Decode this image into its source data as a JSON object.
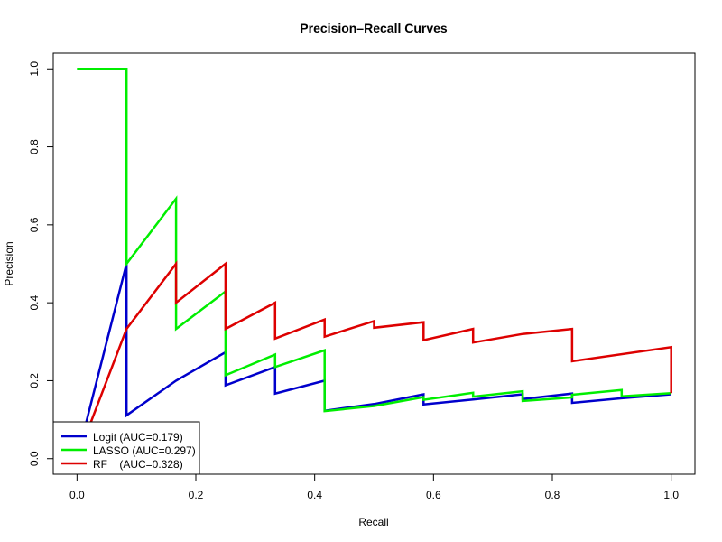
{
  "chart_data": {
    "type": "line",
    "title": "Precision–Recall Curves",
    "xlabel": "Recall",
    "ylabel": "Precision",
    "xlim": [
      0,
      1
    ],
    "ylim": [
      0,
      1
    ],
    "xticks": [
      "0.0",
      "0.2",
      "0.4",
      "0.6",
      "0.8",
      "1.0"
    ],
    "yticks": [
      "0.0",
      "0.2",
      "0.4",
      "0.6",
      "0.8",
      "1.0"
    ],
    "grid": false,
    "legend_position": "bottom-left",
    "series": [
      {
        "name": "Logit (AUC=0.179)",
        "color": "#0000CC",
        "x": [
          0.0,
          0.0833,
          0.0833,
          0.1667,
          0.25,
          0.25,
          0.3333,
          0.3333,
          0.4167,
          0.4167,
          0.5,
          0.5833,
          0.5833,
          0.6667,
          0.75,
          0.75,
          0.8333,
          0.8333,
          0.9167,
          1.0
        ],
        "y": [
          0.0,
          0.5,
          0.111,
          0.2,
          0.273,
          0.188,
          0.235,
          0.167,
          0.2,
          0.123,
          0.14,
          0.165,
          0.139,
          0.152,
          0.165,
          0.153,
          0.167,
          0.143,
          0.155,
          0.165
        ]
      },
      {
        "name": "LASSO (AUC=0.297)",
        "color": "#00EE00",
        "x": [
          0.0,
          0.0833,
          0.0833,
          0.1667,
          0.1667,
          0.25,
          0.25,
          0.3333,
          0.3333,
          0.4167,
          0.4167,
          0.5,
          0.5833,
          0.5833,
          0.6667,
          0.6667,
          0.75,
          0.75,
          0.8333,
          0.8333,
          0.9167,
          0.9167,
          1.0
        ],
        "y": [
          1.0,
          1.0,
          0.5,
          0.667,
          0.333,
          0.429,
          0.214,
          0.267,
          0.235,
          0.278,
          0.122,
          0.135,
          0.158,
          0.151,
          0.169,
          0.159,
          0.173,
          0.148,
          0.157,
          0.164,
          0.176,
          0.16,
          0.168
        ]
      },
      {
        "name": "RF    (AUC=0.328)",
        "color": "#DD0000",
        "x": [
          0.0,
          0.0833,
          0.1667,
          0.1667,
          0.25,
          0.25,
          0.3333,
          0.3333,
          0.4167,
          0.4167,
          0.5,
          0.5,
          0.5833,
          0.5833,
          0.6667,
          0.6667,
          0.75,
          0.8333,
          0.8333,
          1.0,
          1.0
        ],
        "y": [
          0.0,
          0.333,
          0.5,
          0.4,
          0.5,
          0.333,
          0.4,
          0.308,
          0.357,
          0.313,
          0.353,
          0.336,
          0.35,
          0.304,
          0.333,
          0.298,
          0.32,
          0.333,
          0.25,
          0.286,
          0.168
        ]
      }
    ]
  }
}
